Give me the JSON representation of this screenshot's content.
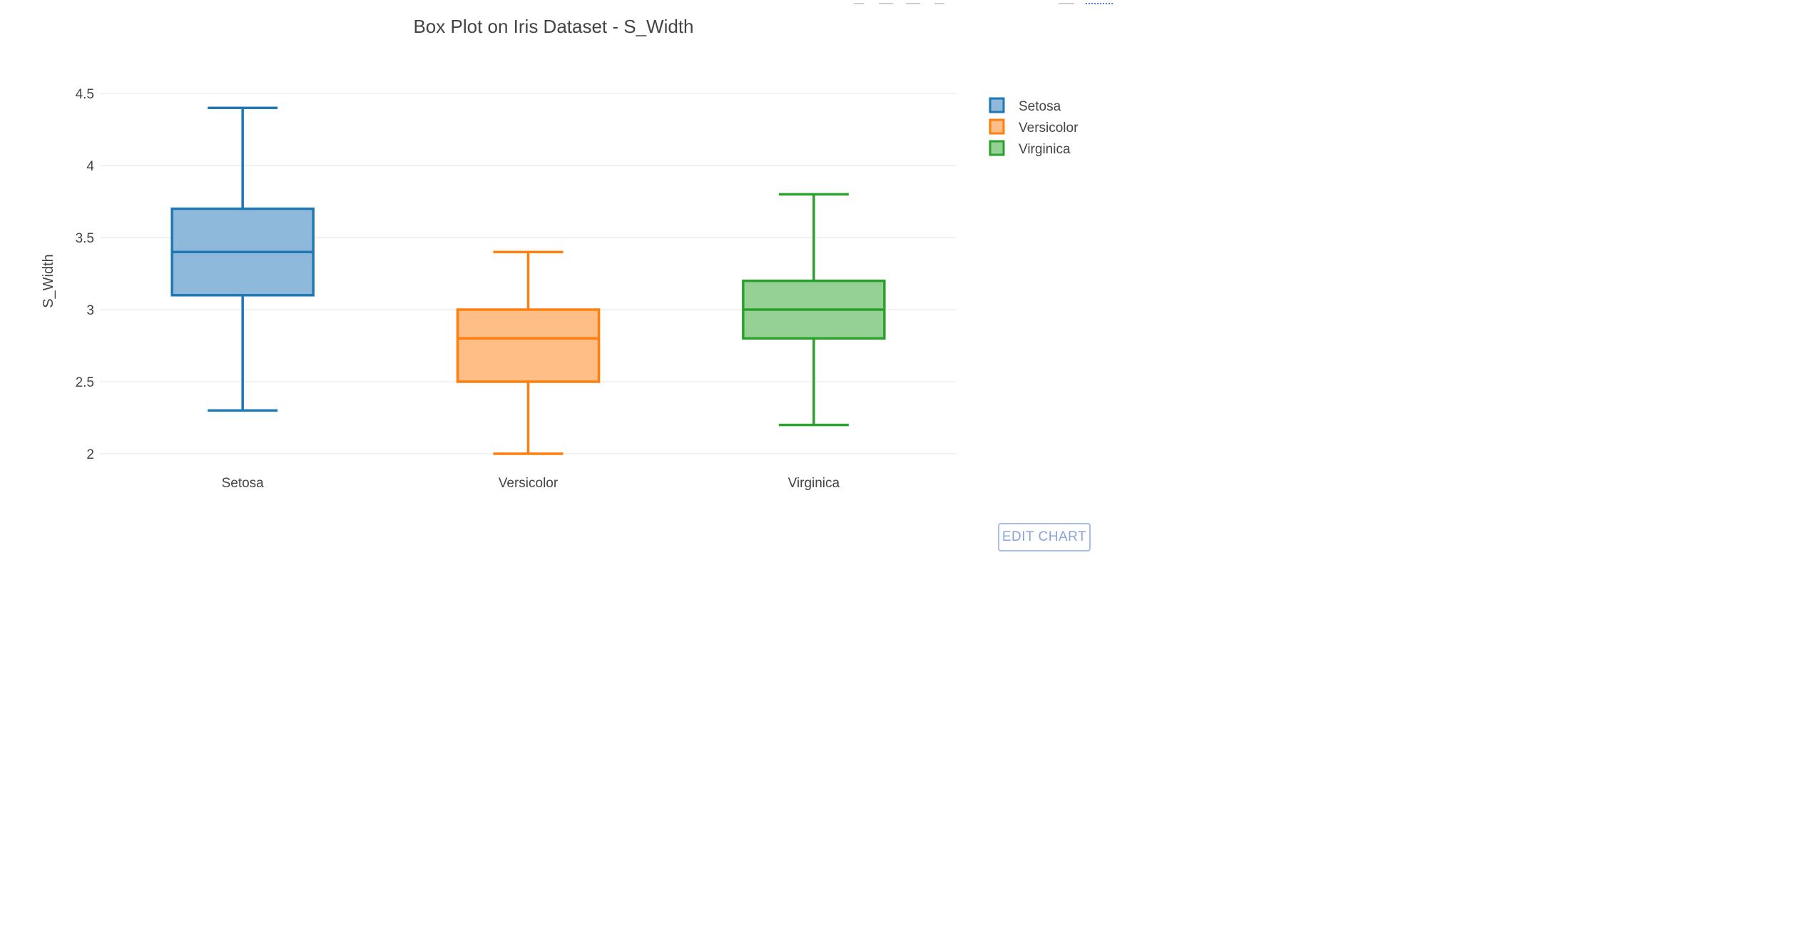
{
  "chart_data": {
    "type": "box",
    "title": "Box Plot on Iris Dataset - S_Width",
    "ylabel": "S_Width",
    "ylim": [
      1.91,
      4.6
    ],
    "y_ticks": [
      2,
      2.5,
      3,
      3.5,
      4,
      4.5
    ],
    "y_tick_labels": [
      "2",
      "2.5",
      "3",
      "3.5",
      "4",
      "4.5"
    ],
    "categories": [
      "Setosa",
      "Versicolor",
      "Virginica"
    ],
    "grid": true,
    "legend_position": "top-right",
    "series": [
      {
        "name": "Setosa",
        "min": 2.3,
        "q1": 3.1,
        "median": 3.4,
        "q3": 3.7,
        "max": 4.4,
        "color": "#1f77b4",
        "fill": "#8fb9db"
      },
      {
        "name": "Versicolor",
        "min": 2.0,
        "q1": 2.5,
        "median": 2.8,
        "q3": 3.0,
        "max": 3.4,
        "color": "#ff7f0e",
        "fill": "#ffbe85"
      },
      {
        "name": "Virginica",
        "min": 2.2,
        "q1": 2.8,
        "median": 3.0,
        "q3": 3.2,
        "max": 3.8,
        "color": "#2ca02c",
        "fill": "#95d095"
      }
    ]
  },
  "ui": {
    "edit_chart_label": "EDIT CHART"
  }
}
